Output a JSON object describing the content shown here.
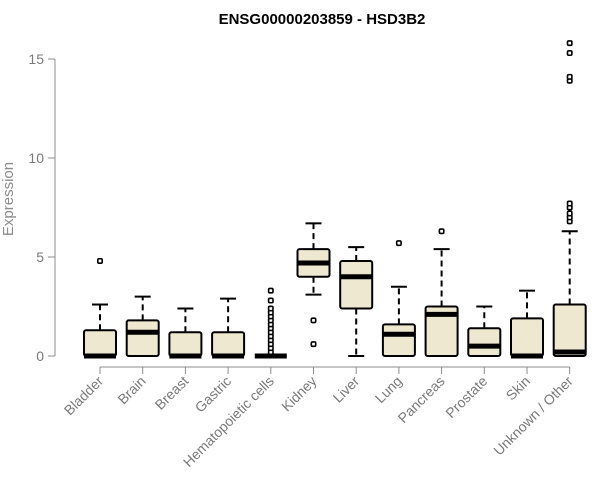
{
  "chart_data": {
    "type": "boxplot",
    "title": "ENSG00000203859 - HSD3B2",
    "ylabel": "Expression",
    "xlabel": "",
    "ylim": [
      -0.5,
      16.4
    ],
    "yticks": [
      0,
      5,
      10,
      15
    ],
    "grid": false,
    "categories": [
      "Bladder",
      "Brain",
      "Breast",
      "Gastric",
      "Hematopoietic cells",
      "Kidney",
      "Liver",
      "Lung",
      "Pancreas",
      "Prostate",
      "Skin",
      "Unknown / Other"
    ],
    "boxes": [
      {
        "low": 0,
        "q1": 0,
        "median": 0,
        "q3": 1.3,
        "high": 2.6,
        "outliers": [
          4.8
        ]
      },
      {
        "low": 0,
        "q1": 0,
        "median": 1.2,
        "q3": 1.8,
        "high": 3.0,
        "outliers": []
      },
      {
        "low": 0,
        "q1": 0,
        "median": 0,
        "q3": 1.2,
        "high": 2.4,
        "outliers": []
      },
      {
        "low": 0,
        "q1": 0,
        "median": 0,
        "q3": 1.2,
        "high": 2.9,
        "outliers": []
      },
      {
        "low": 0,
        "q1": 0,
        "median": 0,
        "q3": 0,
        "high": 0,
        "outliers": [
          0.2,
          0.4,
          0.6,
          0.8,
          1.0,
          1.2,
          1.4,
          1.6,
          1.8,
          2.0,
          2.2,
          2.4,
          2.8,
          3.3
        ]
      },
      {
        "low": 3.1,
        "q1": 4.0,
        "median": 4.7,
        "q3": 5.4,
        "high": 6.7,
        "outliers": [
          1.8,
          0.6
        ]
      },
      {
        "low": 0,
        "q1": 2.4,
        "median": 4.0,
        "q3": 4.8,
        "high": 5.5,
        "outliers": []
      },
      {
        "low": 0,
        "q1": 0,
        "median": 1.1,
        "q3": 1.6,
        "high": 3.5,
        "outliers": [
          5.7
        ]
      },
      {
        "low": 0,
        "q1": 0,
        "median": 2.1,
        "q3": 2.5,
        "high": 5.4,
        "outliers": [
          6.3
        ]
      },
      {
        "low": 0,
        "q1": 0,
        "median": 0.5,
        "q3": 1.4,
        "high": 2.5,
        "outliers": []
      },
      {
        "low": 0,
        "q1": 0,
        "median": 0,
        "q3": 1.9,
        "high": 3.3,
        "outliers": []
      },
      {
        "low": 0,
        "q1": 0,
        "median": 0.2,
        "q3": 2.6,
        "high": 6.3,
        "outliers": [
          6.8,
          7.0,
          7.2,
          7.5,
          7.7,
          13.9,
          14.1,
          15.3,
          15.8
        ]
      }
    ]
  }
}
